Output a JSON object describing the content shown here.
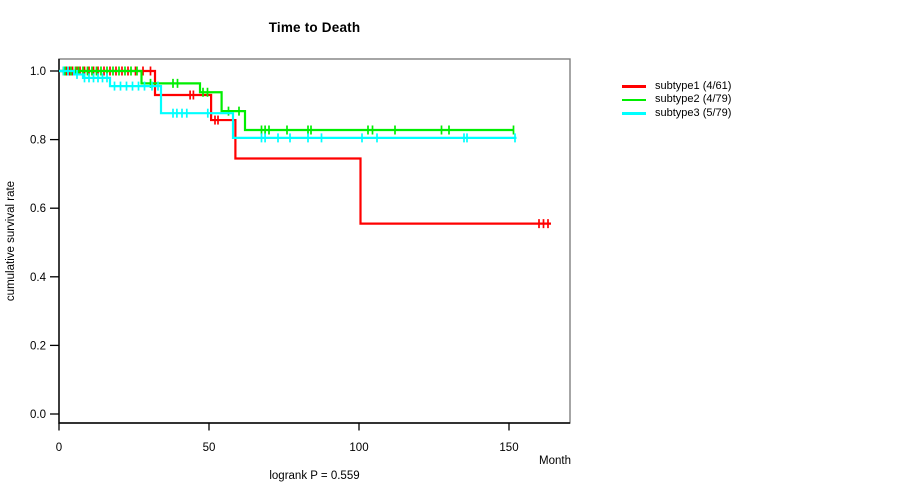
{
  "title": "Time to Death",
  "chart_data": {
    "type": "line",
    "subtype": "kaplan-meier-step",
    "title": "Time to Death",
    "xlabel": "Month",
    "ylabel": "cumulative survival rate",
    "annotation": "logrank P = 0.559",
    "x_ticks": [
      0,
      50,
      100,
      150
    ],
    "y_ticks": [
      1.0,
      0.8,
      0.6,
      0.4,
      0.2,
      0.0
    ],
    "xlim": [
      0,
      170
    ],
    "ylim": [
      0.0,
      1.04
    ],
    "grid": false,
    "legend_position": "right-outside",
    "frame_color": "#7f7f7f",
    "axis_color": "#000000",
    "series": [
      {
        "name": "subtype1",
        "label": "subtype1 (4/61)",
        "events": 4,
        "n": 61,
        "color": "#ff0000",
        "steps": [
          [
            0,
            1.0
          ],
          [
            32,
            0.93
          ],
          [
            50.7,
            0.857
          ],
          [
            58.8,
            0.745
          ],
          [
            100.5,
            0.555
          ]
        ],
        "end_month": 164,
        "censor_marks": [
          [
            1.5,
            1.0
          ],
          [
            2.5,
            1.0
          ],
          [
            3.5,
            1.0
          ],
          [
            4.5,
            1.0
          ],
          [
            6,
            1.0
          ],
          [
            7,
            1.0
          ],
          [
            8.5,
            1.0
          ],
          [
            10,
            1.0
          ],
          [
            11.5,
            1.0
          ],
          [
            13,
            1.0
          ],
          [
            15,
            1.0
          ],
          [
            17,
            1.0
          ],
          [
            19,
            1.0
          ],
          [
            21,
            1.0
          ],
          [
            23,
            1.0
          ],
          [
            25.5,
            1.0
          ],
          [
            28,
            1.0
          ],
          [
            30.5,
            1.0
          ],
          [
            43.7,
            0.93
          ],
          [
            44.8,
            0.93
          ],
          [
            52,
            0.857
          ],
          [
            53,
            0.857
          ],
          [
            160,
            0.555
          ],
          [
            161.5,
            0.555
          ],
          [
            163,
            0.555
          ]
        ]
      },
      {
        "name": "subtype2",
        "label": "subtype2 (4/79)",
        "events": 4,
        "n": 79,
        "color": "#00ee00",
        "steps": [
          [
            0,
            1.0
          ],
          [
            27.5,
            0.964
          ],
          [
            47,
            0.938
          ],
          [
            54.2,
            0.883
          ],
          [
            62,
            0.828
          ]
        ],
        "end_month": 151.5,
        "censor_marks": [
          [
            2,
            1.0
          ],
          [
            3,
            1.0
          ],
          [
            4,
            1.0
          ],
          [
            5.5,
            1.0
          ],
          [
            6.5,
            1.0
          ],
          [
            8,
            1.0
          ],
          [
            9.5,
            1.0
          ],
          [
            11,
            1.0
          ],
          [
            12.5,
            1.0
          ],
          [
            14,
            1.0
          ],
          [
            16,
            1.0
          ],
          [
            18,
            1.0
          ],
          [
            20,
            1.0
          ],
          [
            22,
            1.0
          ],
          [
            24,
            1.0
          ],
          [
            26,
            1.0
          ],
          [
            30.5,
            0.964
          ],
          [
            38,
            0.964
          ],
          [
            39.5,
            0.964
          ],
          [
            48,
            0.938
          ],
          [
            49.5,
            0.938
          ],
          [
            56.5,
            0.883
          ],
          [
            60,
            0.883
          ],
          [
            67.5,
            0.828
          ],
          [
            68.7,
            0.828
          ],
          [
            70,
            0.828
          ],
          [
            76,
            0.828
          ],
          [
            83,
            0.828
          ],
          [
            84,
            0.828
          ],
          [
            103,
            0.828
          ],
          [
            104.5,
            0.828
          ],
          [
            112,
            0.828
          ],
          [
            127.5,
            0.828
          ],
          [
            130,
            0.828
          ],
          [
            151.5,
            0.828
          ]
        ]
      },
      {
        "name": "subtype3",
        "label": "subtype3 (5/79)",
        "events": 5,
        "n": 79,
        "color": "#00ffff",
        "steps": [
          [
            0,
            1.0
          ],
          [
            5,
            0.99
          ],
          [
            8,
            0.98
          ],
          [
            17,
            0.956
          ],
          [
            34,
            0.877
          ],
          [
            58,
            0.805
          ]
        ],
        "end_month": 152.5,
        "censor_marks": [
          [
            1.5,
            1.0
          ],
          [
            3,
            1.0
          ],
          [
            6,
            0.99
          ],
          [
            8.5,
            0.98
          ],
          [
            10,
            0.98
          ],
          [
            11.5,
            0.98
          ],
          [
            13,
            0.98
          ],
          [
            14.5,
            0.98
          ],
          [
            16,
            0.98
          ],
          [
            18.5,
            0.956
          ],
          [
            20.5,
            0.956
          ],
          [
            22.5,
            0.956
          ],
          [
            24.5,
            0.956
          ],
          [
            26.5,
            0.956
          ],
          [
            28.5,
            0.956
          ],
          [
            31,
            0.956
          ],
          [
            33,
            0.956
          ],
          [
            38,
            0.877
          ],
          [
            39.3,
            0.877
          ],
          [
            41,
            0.877
          ],
          [
            42.6,
            0.877
          ],
          [
            49.6,
            0.877
          ],
          [
            67.5,
            0.805
          ],
          [
            68.7,
            0.805
          ],
          [
            73,
            0.805
          ],
          [
            77,
            0.805
          ],
          [
            83,
            0.805
          ],
          [
            87.5,
            0.805
          ],
          [
            101,
            0.805
          ],
          [
            106,
            0.805
          ],
          [
            135,
            0.805
          ],
          [
            136,
            0.805
          ],
          [
            152,
            0.805
          ]
        ]
      }
    ]
  }
}
